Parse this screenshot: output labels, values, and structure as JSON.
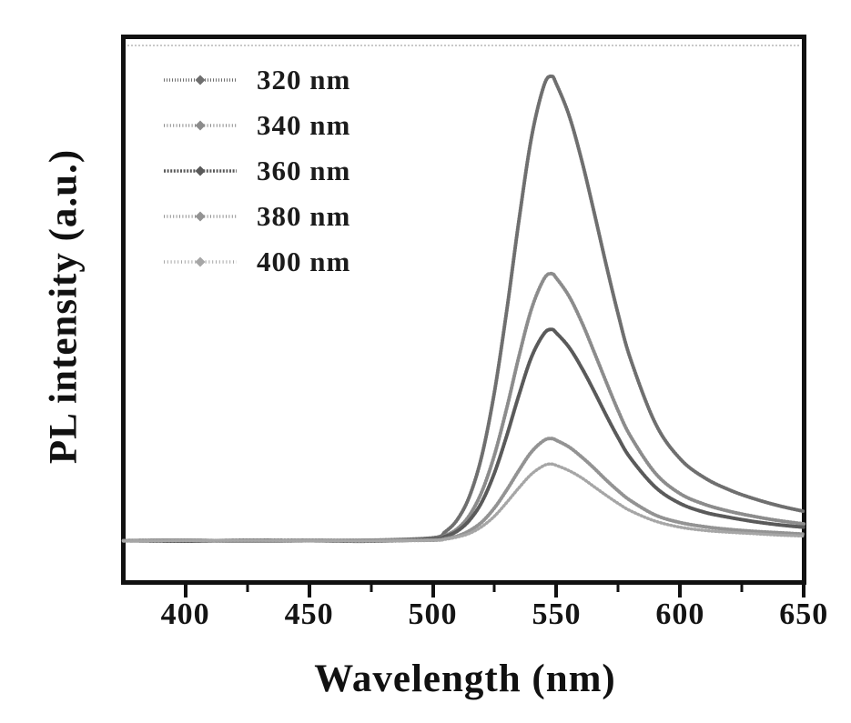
{
  "figure": {
    "background": "#ffffff",
    "frame_color": "#111111",
    "text_color": "#111111"
  },
  "axes": {
    "x": {
      "label": "Wavelength (nm)",
      "major_ticks": [
        400,
        450,
        500,
        550,
        600,
        650
      ],
      "minor_ticks": [
        425,
        475,
        525,
        575,
        625
      ],
      "tick_labels": [
        "400",
        "450",
        "500",
        "550",
        "600",
        "650"
      ]
    },
    "y": {
      "label": "PL intensity (a.u.)",
      "ticks_visible": false
    }
  },
  "chart_data": {
    "type": "line",
    "title": "",
    "xlabel": "Wavelength (nm)",
    "ylabel": "PL intensity (a.u.)",
    "xlim": [
      374,
      651
    ],
    "ylim": [
      -85,
      1100
    ],
    "grid": false,
    "legend_position": "upper-left",
    "peak_wavelength_nm": 548,
    "x": [
      375,
      400,
      425,
      450,
      475,
      500,
      505,
      510,
      515,
      520,
      525,
      530,
      535,
      540,
      545,
      548,
      550,
      555,
      560,
      565,
      570,
      575,
      580,
      590,
      600,
      610,
      620,
      630,
      640,
      650
    ],
    "series": [
      {
        "name": "320 nm",
        "color": "#6f6f6f",
        "dash": "1 2",
        "width": 4,
        "values": [
          10,
          11,
          9,
          10,
          11,
          16,
          29,
          56,
          108,
          197,
          333,
          510,
          707,
          882,
          991,
          1010,
          993,
          927,
          833,
          722,
          606,
          496,
          400,
          262,
          186,
          145,
          119,
          100,
          85,
          73
        ]
      },
      {
        "name": "340 nm",
        "color": "#8c8c8c",
        "dash": "1 2.4",
        "width": 4,
        "values": [
          10,
          10,
          9,
          11,
          10,
          13,
          21,
          36,
          66,
          118,
          196,
          298,
          411,
          511,
          574,
          585,
          575,
          537,
          483,
          419,
          353,
          289,
          234,
          155,
          111,
          88,
          73,
          62,
          53,
          46
        ]
      },
      {
        "name": "360 nm",
        "color": "#5a5a5a",
        "dash": "2 1.6",
        "width": 4,
        "values": [
          10,
          9,
          11,
          10,
          9,
          13,
          19,
          31,
          55,
          95,
          157,
          238,
          327,
          407,
          456,
          465,
          457,
          427,
          384,
          334,
          281,
          231,
          187,
          125,
          90,
          71,
          60,
          51,
          44,
          39
        ]
      },
      {
        "name": "380 nm",
        "color": "#939393",
        "dash": "1 2.4",
        "width": 4,
        "values": [
          10,
          11,
          9,
          10,
          11,
          11,
          14,
          20,
          32,
          51,
          81,
          120,
          163,
          202,
          226,
          230,
          226,
          212,
          191,
          167,
          141,
          117,
          96,
          65,
          49,
          40,
          34,
          30,
          27,
          24
        ]
      },
      {
        "name": "400 nm",
        "color": "#a6a6a6",
        "dash": "1 2.8",
        "width": 3.5,
        "values": [
          9,
          10,
          11,
          10,
          9,
          11,
          13,
          18,
          26,
          41,
          63,
          93,
          125,
          154,
          172,
          175,
          172,
          161,
          146,
          127,
          108,
          90,
          74,
          52,
          39,
          32,
          28,
          25,
          22,
          20
        ]
      }
    ]
  }
}
